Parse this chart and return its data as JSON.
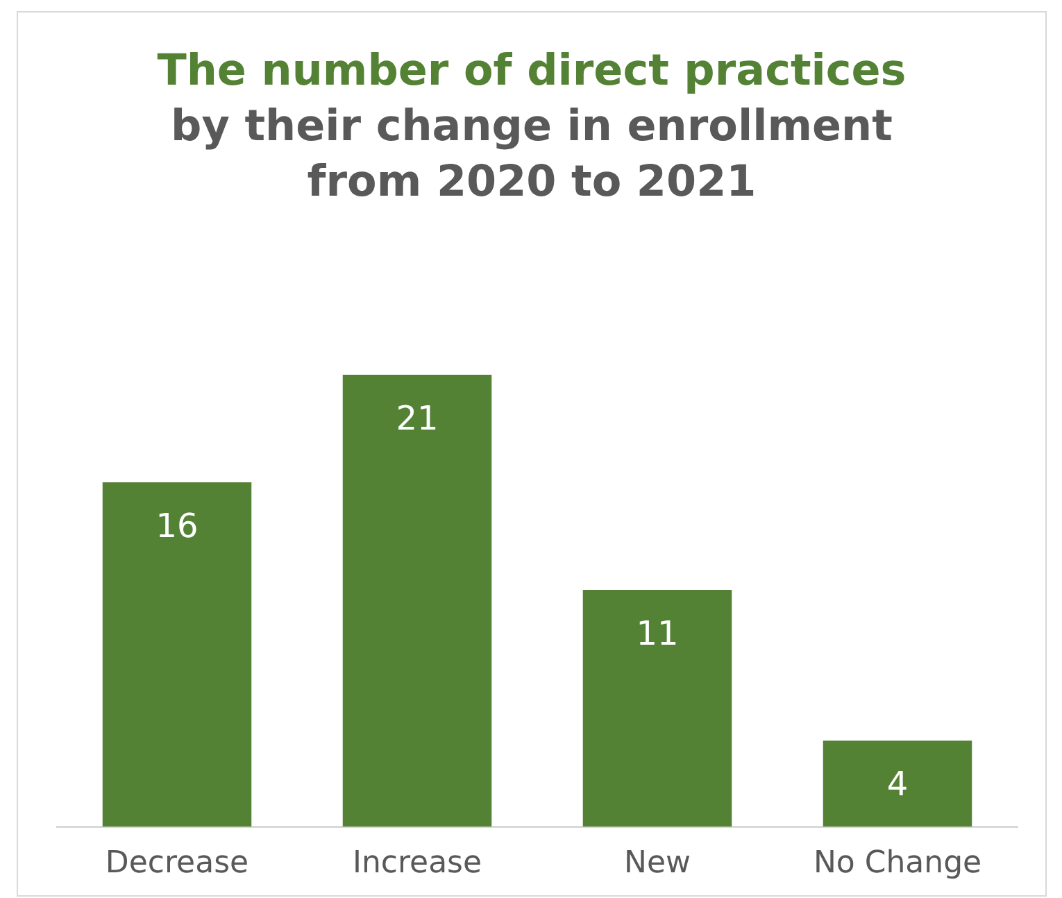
{
  "chart_data": {
    "type": "bar",
    "title": "The number of direct practices",
    "subtitle": "by their change in enrollment from 2020 to 2021",
    "categories": [
      "Decrease",
      "Increase",
      "New",
      "No Change"
    ],
    "values": [
      16,
      21,
      11,
      4
    ],
    "color": "#548235",
    "data_labels": true,
    "grid": false,
    "legend": false
  }
}
